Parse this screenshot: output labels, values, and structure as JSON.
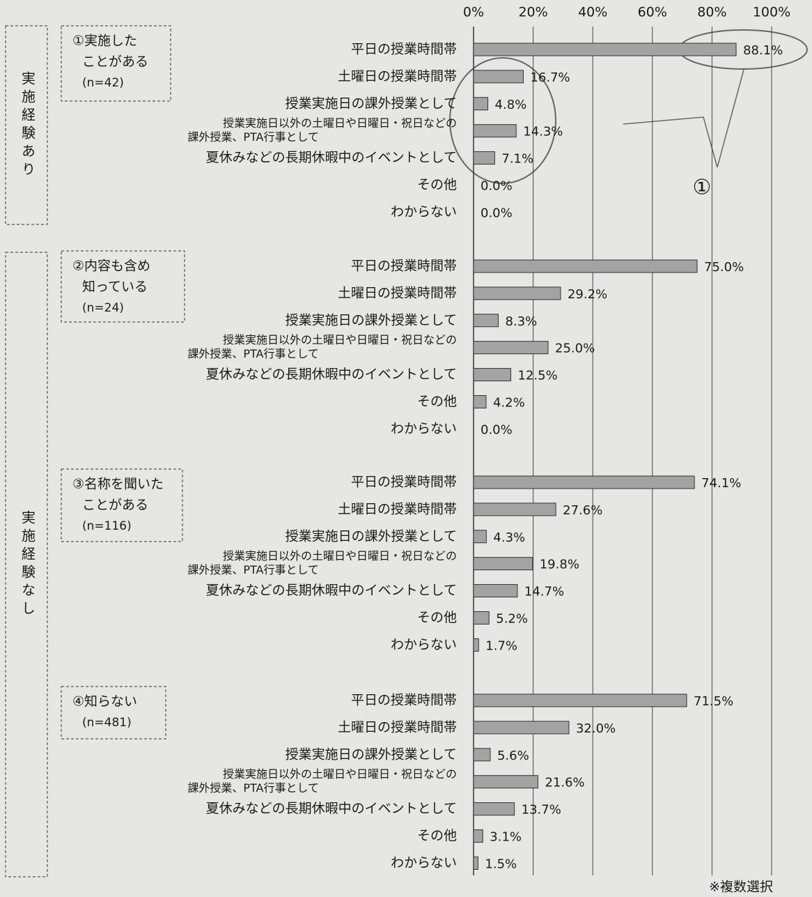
{
  "chart_data": {
    "type": "bar",
    "orientation": "horizontal",
    "xlim": [
      0,
      100
    ],
    "xticks": [
      {
        "value": 0,
        "label": "0%"
      },
      {
        "value": 20,
        "label": "20%"
      },
      {
        "value": 40,
        "label": "40%"
      },
      {
        "value": 60,
        "label": "60%"
      },
      {
        "value": 80,
        "label": "80%"
      },
      {
        "value": 100,
        "label": "100%"
      }
    ],
    "grid": true,
    "color": "#a3a3a3",
    "categories": [
      [
        "平日の授業時間帯"
      ],
      [
        "土曜日の授業時間帯"
      ],
      [
        "授業実施日の課外授業として"
      ],
      [
        "授業実施日以外の土曜日や日曜日・祝日などの",
        "課外授業、PTA行事として"
      ],
      [
        "夏休みなどの長期休暇中のイベントとして"
      ],
      [
        "その他"
      ],
      [
        "わからない"
      ]
    ],
    "sections": [
      "実施経験あり",
      "実施経験なし"
    ],
    "series": [
      {
        "label_lines": [
          "①実施した",
          "ことがある"
        ],
        "n": "(n=42)",
        "values": [
          88.1,
          16.7,
          4.8,
          14.3,
          7.1,
          0.0,
          0.0
        ],
        "value_labels": [
          "88.1%",
          "16.7%",
          "4.8%",
          "14.3%",
          "7.1%",
          "0.0%",
          "0.0%"
        ]
      },
      {
        "label_lines": [
          "②内容も含め",
          "知っている"
        ],
        "n": "(n=24)",
        "values": [
          75.0,
          29.2,
          8.3,
          25.0,
          12.5,
          4.2,
          0.0
        ],
        "value_labels": [
          "75.0%",
          "29.2%",
          "8.3%",
          "25.0%",
          "12.5%",
          "4.2%",
          "0.0%"
        ]
      },
      {
        "label_lines": [
          "③名称を聞いた",
          "ことがある"
        ],
        "n": "(n=116)",
        "values": [
          74.1,
          27.6,
          4.3,
          19.8,
          14.7,
          5.2,
          1.7
        ],
        "value_labels": [
          "74.1%",
          "27.6%",
          "4.3%",
          "19.8%",
          "14.7%",
          "5.2%",
          "1.7%"
        ]
      },
      {
        "label_lines": [
          "④知らない"
        ],
        "n": "(n=481)",
        "values": [
          71.5,
          32.0,
          5.6,
          21.6,
          13.7,
          3.1,
          1.5
        ],
        "value_labels": [
          "71.5%",
          "32.0%",
          "5.6%",
          "21.6%",
          "13.7%",
          "3.1%",
          "1.5%"
        ]
      }
    ],
    "annotation": "①",
    "note": "※複数選択"
  }
}
